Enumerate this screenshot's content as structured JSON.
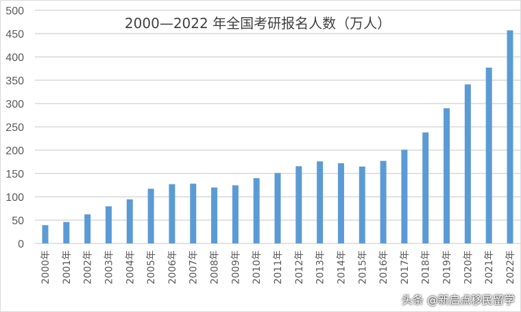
{
  "chart_data": {
    "type": "bar",
    "title": "2000—2022 年全国考研报名人数（万人）",
    "categories": [
      "2000年",
      "2001年",
      "2002年",
      "2003年",
      "2004年",
      "2005年",
      "2006年",
      "2007年",
      "2008年",
      "2009年",
      "2010年",
      "2011年",
      "2012年",
      "2013年",
      "2014年",
      "2015年",
      "2016年",
      "2017年",
      "2018年",
      "2019年",
      "2020年",
      "2021年",
      "2022年"
    ],
    "values": [
      39.2,
      46,
      62.4,
      79.7,
      94.5,
      117.2,
      127.1,
      128.2,
      120,
      124.6,
      140,
      151.1,
      165.6,
      176,
      172,
      164.9,
      177,
      201,
      238,
      290,
      341,
      377,
      457
    ],
    "ylim": [
      0,
      500
    ],
    "yticks": [
      0,
      50,
      100,
      150,
      200,
      250,
      300,
      350,
      400,
      450,
      500
    ],
    "grid": true,
    "bar_color": "#5b9bd5",
    "xlabel": "",
    "ylabel": ""
  },
  "watermark": "头条 @新启点移民留学"
}
